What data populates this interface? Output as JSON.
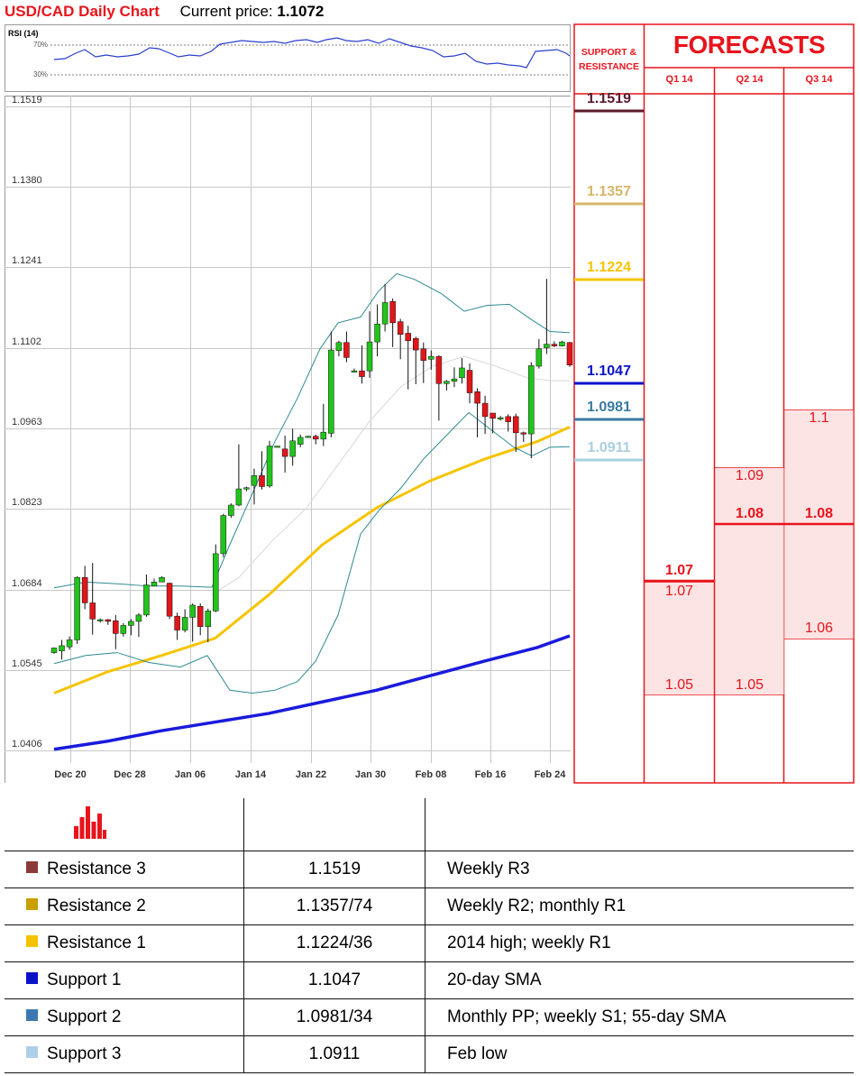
{
  "header": {
    "title": "USD/CAD Daily Chart",
    "price_label": "Current price:",
    "price_value": "1.1072"
  },
  "rsi": {
    "label": "RSI (14)",
    "levels": [
      "70%",
      "30%"
    ]
  },
  "support_resistance_header": "SUPPORT & RESISTANCE",
  "forecasts": {
    "title": "FORECASTS",
    "quarters": [
      "Q1 14",
      "Q2 14",
      "Q3 14"
    ],
    "columns": [
      {
        "quarter": "Q1 14",
        "consensus": "1.07",
        "high": "1.07",
        "low": "1.05"
      },
      {
        "quarter": "Q2 14",
        "consensus": "1.08",
        "high": "1.09",
        "low": "1.05"
      },
      {
        "quarter": "Q3 14",
        "consensus": "1.08",
        "high": "1.1",
        "low": "1.06"
      }
    ]
  },
  "levels": [
    {
      "value": "1.1519",
      "color": "#5c1a2e"
    },
    {
      "value": "1.1357",
      "color": "#d6b66a"
    },
    {
      "value": "1.1224",
      "color": "#f5c400"
    },
    {
      "value": "1.1047",
      "color": "#0a12c8"
    },
    {
      "value": "1.0981",
      "color": "#3a7aa0"
    },
    {
      "value": "1.0911",
      "color": "#a9cfe0"
    }
  ],
  "table": {
    "rows": [
      {
        "name": "Resistance 3",
        "value": "1.1519",
        "note": "Weekly R3",
        "color": "#8b3a3a"
      },
      {
        "name": "Resistance 2",
        "value": "1.1357/74",
        "note": "Weekly R2; monthly R1",
        "color": "#c9a000"
      },
      {
        "name": "Resistance 1",
        "value": "1.1224/36",
        "note": "2014 high; weekly R1",
        "color": "#f5c400"
      },
      {
        "name": "Support 1",
        "value": "1.1047",
        "note": "20-day SMA",
        "color": "#0a12c8"
      },
      {
        "name": "Support 2",
        "value": "1.0981/34",
        "note": "Monthly PP; weekly S1; 55-day SMA",
        "color": "#3a7ab0"
      },
      {
        "name": "Support 3",
        "value": "1.0911",
        "note": "Feb low",
        "color": "#b0cfe8"
      }
    ]
  },
  "chart_data": {
    "type": "candlestick",
    "title": "USD/CAD Daily Chart",
    "y_ticks": [
      "1.1519",
      "1.1380",
      "1.1241",
      "1.1102",
      "1.0963",
      "1.0823",
      "1.0684",
      "1.0545",
      "1.0406"
    ],
    "x_ticks": [
      "Dec 20",
      "Dec 28",
      "Jan 06",
      "Jan 14",
      "Jan 22",
      "Jan 30",
      "Feb 08",
      "Feb 16",
      "Feb 24"
    ],
    "ylim": [
      1.0406,
      1.1519
    ],
    "candles": [
      [
        1.0575,
        1.0583,
        1.0573,
        1.0584
      ],
      [
        1.0578,
        1.0587,
        1.0563,
        1.0597
      ],
      [
        1.0585,
        1.0597,
        1.058,
        1.0603
      ],
      [
        1.0597,
        1.0705,
        1.059,
        1.0707
      ],
      [
        1.0705,
        1.0661,
        1.065,
        1.0725
      ],
      [
        1.0661,
        1.0633,
        1.0606,
        1.073
      ],
      [
        1.063,
        1.0632,
        1.0627,
        1.0634
      ],
      [
        1.0632,
        1.0629,
        1.0623,
        1.0633
      ],
      [
        1.063,
        1.0608,
        1.0581,
        1.064
      ],
      [
        1.0608,
        1.0622,
        1.0603,
        1.0626
      ],
      [
        1.0622,
        1.0629,
        1.0605,
        1.0633
      ],
      [
        1.0629,
        1.064,
        1.0602,
        1.0643
      ],
      [
        1.064,
        1.0692,
        1.0637,
        1.071
      ],
      [
        1.069,
        1.0697,
        1.069,
        1.0703
      ],
      [
        1.0697,
        1.0705,
        1.0697,
        1.0707
      ],
      [
        1.0695,
        1.0638,
        1.0633,
        1.0696
      ],
      [
        1.0638,
        1.0614,
        1.0597,
        1.0644
      ],
      [
        1.0614,
        1.0636,
        1.061,
        1.065
      ],
      [
        1.0636,
        1.0657,
        1.0594,
        1.066
      ],
      [
        1.0655,
        1.062,
        1.0605,
        1.066
      ],
      [
        1.062,
        1.0647,
        1.0593,
        1.0651
      ],
      [
        1.0647,
        1.0746,
        1.0645,
        1.0762
      ],
      [
        1.0746,
        1.0812,
        1.074,
        1.0815
      ],
      [
        1.0812,
        1.083,
        1.0808,
        1.0833
      ],
      [
        1.083,
        1.0858,
        1.0828,
        1.0935
      ],
      [
        1.0858,
        1.086,
        1.0854,
        1.0862
      ],
      [
        1.0864,
        1.0881,
        1.0831,
        1.0893
      ],
      [
        1.0881,
        1.0862,
        1.0857,
        1.0923
      ],
      [
        1.0863,
        1.0932,
        1.086,
        1.0941
      ],
      [
        1.0932,
        1.0932,
        1.0932,
        1.0932
      ],
      [
        1.0927,
        1.0914,
        1.0886,
        1.095
      ],
      [
        1.0914,
        1.0941,
        1.0898,
        1.0962
      ],
      [
        1.0935,
        1.0947,
        1.093,
        1.0952
      ],
      [
        1.0947,
        1.0949,
        1.0948,
        1.095
      ],
      [
        1.0949,
        1.0944,
        1.0935,
        1.0952
      ],
      [
        1.0944,
        1.0956,
        1.0932,
        1.1005
      ],
      [
        1.0954,
        1.1098,
        1.0947,
        1.113
      ],
      [
        1.1097,
        1.1111,
        1.1087,
        1.1114
      ],
      [
        1.1111,
        1.1085,
        1.1077,
        1.113
      ],
      [
        1.1062,
        1.1062,
        1.106,
        1.1066
      ],
      [
        1.1062,
        1.1052,
        1.104,
        1.1106
      ],
      [
        1.1062,
        1.1112,
        1.105,
        1.1165
      ],
      [
        1.1112,
        1.1143,
        1.1087,
        1.1177
      ],
      [
        1.1143,
        1.118,
        1.113,
        1.1212
      ],
      [
        1.1182,
        1.1145,
        1.1103,
        1.1187
      ],
      [
        1.1147,
        1.1125,
        1.1082,
        1.1152
      ],
      [
        1.1127,
        1.1114,
        1.103,
        1.114
      ],
      [
        1.1118,
        1.1098,
        1.1039,
        1.1121
      ],
      [
        1.11,
        1.108,
        1.1041,
        1.1111
      ],
      [
        1.1082,
        1.1087,
        1.1064,
        1.1097
      ],
      [
        1.1087,
        1.104,
        1.0976,
        1.1089
      ],
      [
        1.104,
        1.1044,
        1.1028,
        1.1046
      ],
      [
        1.1044,
        1.1048,
        1.1034,
        1.1068
      ],
      [
        1.105,
        1.1067,
        1.104,
        1.1084
      ],
      [
        1.1063,
        1.1024,
        1.1006,
        1.1075
      ],
      [
        1.1026,
        1.1006,
        1.0947,
        1.1032
      ],
      [
        1.1006,
        1.0983,
        1.0953,
        1.1019
      ],
      [
        1.0989,
        1.098,
        1.0954,
        1.0985
      ],
      [
        1.098,
        1.0981,
        1.0976,
        1.0984
      ],
      [
        1.0983,
        1.0974,
        1.0957,
        1.0987
      ],
      [
        1.0983,
        1.0955,
        1.0922,
        1.0988
      ],
      [
        1.0955,
        1.0953,
        1.0939,
        1.0957
      ],
      [
        1.0953,
        1.1071,
        1.0911,
        1.1077
      ],
      [
        1.107,
        1.11,
        1.1066,
        1.1117
      ],
      [
        1.1102,
        1.1108,
        1.1091,
        1.1221
      ],
      [
        1.1108,
        1.1105,
        1.1103,
        1.1113
      ],
      [
        1.1105,
        1.1112,
        1.1104,
        1.1114
      ],
      [
        1.1111,
        1.1072,
        1.1069,
        1.1112
      ]
    ],
    "series": [
      {
        "name": "",
        "color": "#f5c400",
        "values": [
          [
            0,
            1.0505
          ],
          [
            10,
            1.0542
          ],
          [
            20,
            1.057
          ],
          [
            30,
            1.06
          ],
          [
            40,
            1.0675
          ],
          [
            50,
            1.0762
          ],
          [
            60,
            1.0825
          ],
          [
            70,
            1.0872
          ],
          [
            80,
            1.0909
          ],
          [
            90,
            1.094
          ],
          [
            96,
            1.0965
          ]
        ]
      },
      {
        "name": "",
        "color": "#1a1adc",
        "values": [
          [
            0,
            1.0408
          ],
          [
            10,
            1.0422
          ],
          [
            20,
            1.044
          ],
          [
            30,
            1.0455
          ],
          [
            40,
            1.047
          ],
          [
            50,
            1.049
          ],
          [
            60,
            1.051
          ],
          [
            70,
            1.0535
          ],
          [
            80,
            1.056
          ],
          [
            90,
            1.0584
          ],
          [
            96,
            1.0604
          ]
        ]
      }
    ]
  }
}
